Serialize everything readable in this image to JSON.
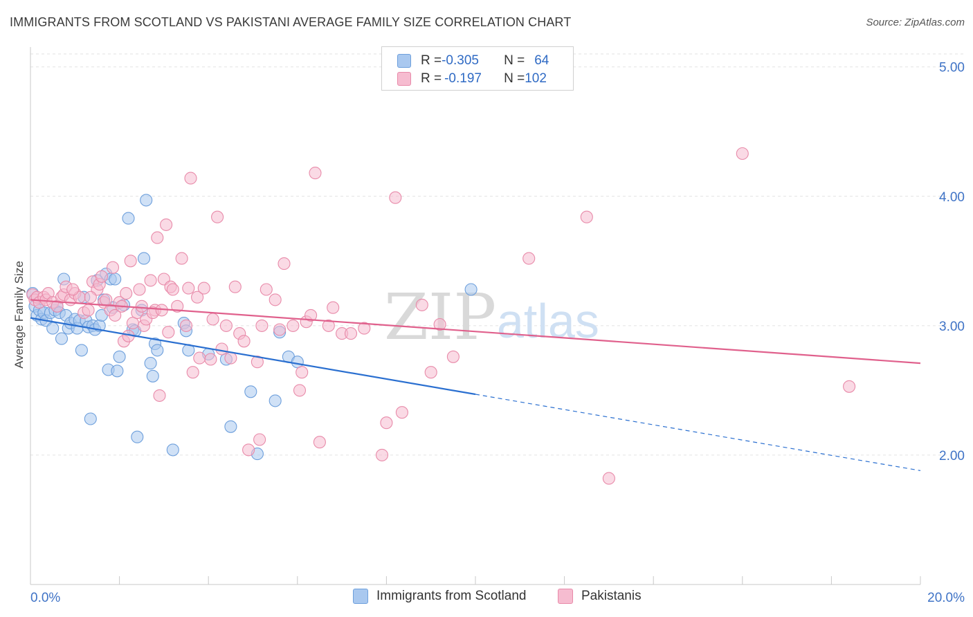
{
  "title": "IMMIGRANTS FROM SCOTLAND VS PAKISTANI AVERAGE FAMILY SIZE CORRELATION CHART",
  "source": "Source: ZipAtlas.com",
  "watermark": {
    "zip": "ZIP",
    "atlas": "atlas"
  },
  "legend": {
    "rows": [
      {
        "r_label": "R = ",
        "r_value": "-0.305",
        "n_label": "N = ",
        "n_value": "64",
        "color": "#a9c8ef",
        "stroke": "#6d9fdc"
      },
      {
        "r_label": "R = ",
        "r_value": "-0.197",
        "n_label": "N = ",
        "n_value": "102",
        "color": "#f6bcd0",
        "stroke": "#e88aa9"
      }
    ]
  },
  "bottom_legend": [
    {
      "label": "Immigrants from Scotland",
      "color": "#a9c8ef",
      "stroke": "#6d9fdc"
    },
    {
      "label": "Pakistanis",
      "color": "#f6bcd0",
      "stroke": "#e88aa9"
    }
  ],
  "chart_data": {
    "type": "scatter",
    "title": "IMMIGRANTS FROM SCOTLAND VS PAKISTANI AVERAGE FAMILY SIZE CORRELATION CHART",
    "xlabel": "",
    "ylabel": "Average Family Size",
    "xlim": [
      0,
      20
    ],
    "ylim": [
      1.0,
      5.1
    ],
    "x_tick_labels": [
      "0.0%",
      "20.0%"
    ],
    "y_ticks": [
      2.0,
      3.0,
      4.0,
      5.0
    ],
    "y_tick_labels": [
      "2.00",
      "3.00",
      "4.00",
      "5.00"
    ],
    "grid": true,
    "legend_position": "top-center",
    "series": [
      {
        "name": "Immigrants from Scotland",
        "color": "#6d9fdc",
        "fill": "#a9c8ef",
        "trend": {
          "x": [
            0.0,
            10.0,
            20.0
          ],
          "y": [
            3.06,
            2.47,
            1.88
          ],
          "solid_until": 10.0,
          "color": "#2a6fd0"
        },
        "points": [
          [
            0.1,
            3.15
          ],
          [
            0.15,
            3.08
          ],
          [
            0.2,
            3.12
          ],
          [
            0.25,
            3.05
          ],
          [
            0.3,
            3.1
          ],
          [
            0.35,
            3.04
          ],
          [
            0.45,
            3.1
          ],
          [
            0.5,
            2.98
          ],
          [
            0.55,
            3.12
          ],
          [
            0.6,
            3.15
          ],
          [
            0.65,
            3.1
          ],
          [
            0.7,
            2.9
          ],
          [
            0.75,
            3.36
          ],
          [
            0.8,
            3.08
          ],
          [
            0.85,
            2.98
          ],
          [
            0.9,
            3.02
          ],
          [
            1.0,
            3.05
          ],
          [
            1.05,
            2.98
          ],
          [
            1.1,
            3.04
          ],
          [
            1.15,
            2.81
          ],
          [
            1.2,
            3.22
          ],
          [
            1.25,
            3.04
          ],
          [
            1.3,
            2.99
          ],
          [
            1.35,
            2.28
          ],
          [
            1.4,
            3.0
          ],
          [
            1.45,
            2.97
          ],
          [
            1.5,
            3.35
          ],
          [
            1.55,
            3.0
          ],
          [
            1.6,
            3.08
          ],
          [
            1.65,
            3.2
          ],
          [
            1.7,
            3.4
          ],
          [
            1.75,
            2.66
          ],
          [
            1.8,
            3.36
          ],
          [
            1.85,
            3.14
          ],
          [
            1.9,
            3.36
          ],
          [
            1.95,
            2.65
          ],
          [
            2.0,
            2.76
          ],
          [
            2.1,
            3.16
          ],
          [
            2.2,
            3.83
          ],
          [
            2.3,
            2.97
          ],
          [
            2.35,
            2.96
          ],
          [
            2.4,
            2.14
          ],
          [
            2.5,
            3.12
          ],
          [
            2.55,
            3.52
          ],
          [
            2.6,
            3.97
          ],
          [
            2.7,
            2.71
          ],
          [
            2.75,
            2.61
          ],
          [
            2.8,
            2.86
          ],
          [
            2.85,
            2.81
          ],
          [
            3.2,
            2.04
          ],
          [
            3.45,
            3.02
          ],
          [
            3.5,
            2.96
          ],
          [
            3.55,
            2.81
          ],
          [
            4.0,
            2.78
          ],
          [
            4.4,
            2.74
          ],
          [
            4.5,
            2.22
          ],
          [
            4.95,
            2.49
          ],
          [
            5.1,
            2.01
          ],
          [
            5.5,
            2.42
          ],
          [
            5.6,
            2.95
          ],
          [
            5.8,
            2.76
          ],
          [
            6.0,
            2.72
          ],
          [
            9.9,
            3.28
          ],
          [
            0.05,
            3.25
          ]
        ]
      },
      {
        "name": "Pakistanis",
        "color": "#e88aa9",
        "fill": "#f6bcd0",
        "trend": {
          "x": [
            0.0,
            20.0
          ],
          "y": [
            3.2,
            2.71
          ],
          "solid_until": 20.0,
          "color": "#e0608c"
        },
        "points": [
          [
            0.05,
            3.24
          ],
          [
            0.1,
            3.2
          ],
          [
            0.15,
            3.22
          ],
          [
            0.2,
            3.18
          ],
          [
            0.3,
            3.22
          ],
          [
            0.35,
            3.2
          ],
          [
            0.4,
            3.25
          ],
          [
            0.5,
            3.18
          ],
          [
            0.6,
            3.15
          ],
          [
            0.7,
            3.22
          ],
          [
            0.75,
            3.24
          ],
          [
            0.8,
            3.3
          ],
          [
            0.9,
            3.2
          ],
          [
            1.0,
            3.25
          ],
          [
            1.1,
            3.22
          ],
          [
            1.2,
            3.1
          ],
          [
            1.3,
            3.12
          ],
          [
            1.4,
            3.34
          ],
          [
            1.5,
            3.28
          ],
          [
            1.55,
            3.32
          ],
          [
            1.6,
            3.38
          ],
          [
            1.65,
            3.18
          ],
          [
            1.7,
            3.2
          ],
          [
            1.8,
            3.12
          ],
          [
            1.85,
            3.45
          ],
          [
            1.9,
            3.08
          ],
          [
            2.0,
            3.18
          ],
          [
            2.05,
            3.15
          ],
          [
            2.1,
            2.88
          ],
          [
            2.15,
            3.25
          ],
          [
            2.2,
            2.92
          ],
          [
            2.25,
            3.5
          ],
          [
            2.3,
            3.02
          ],
          [
            2.4,
            3.1
          ],
          [
            2.45,
            3.28
          ],
          [
            2.5,
            3.15
          ],
          [
            2.55,
            3.0
          ],
          [
            2.6,
            3.05
          ],
          [
            2.7,
            3.35
          ],
          [
            2.8,
            3.12
          ],
          [
            2.85,
            3.68
          ],
          [
            2.9,
            2.46
          ],
          [
            3.0,
            3.36
          ],
          [
            3.05,
            3.78
          ],
          [
            3.1,
            2.95
          ],
          [
            3.15,
            3.3
          ],
          [
            3.2,
            3.28
          ],
          [
            3.3,
            3.15
          ],
          [
            3.4,
            3.52
          ],
          [
            3.5,
            3.0
          ],
          [
            3.55,
            3.29
          ],
          [
            3.6,
            4.14
          ],
          [
            3.65,
            2.64
          ],
          [
            3.75,
            3.22
          ],
          [
            3.8,
            2.75
          ],
          [
            3.9,
            3.29
          ],
          [
            4.1,
            3.05
          ],
          [
            4.2,
            3.84
          ],
          [
            4.3,
            2.82
          ],
          [
            4.4,
            3.0
          ],
          [
            4.5,
            2.75
          ],
          [
            4.6,
            3.3
          ],
          [
            4.7,
            2.94
          ],
          [
            4.8,
            2.88
          ],
          [
            4.9,
            2.04
          ],
          [
            5.1,
            2.72
          ],
          [
            5.15,
            2.12
          ],
          [
            5.2,
            3.0
          ],
          [
            5.3,
            3.28
          ],
          [
            5.5,
            3.2
          ],
          [
            5.6,
            2.97
          ],
          [
            5.7,
            3.48
          ],
          [
            5.9,
            3.0
          ],
          [
            6.05,
            2.5
          ],
          [
            6.1,
            2.64
          ],
          [
            6.2,
            3.03
          ],
          [
            6.3,
            3.08
          ],
          [
            6.4,
            4.18
          ],
          [
            6.5,
            2.1
          ],
          [
            6.7,
            3.0
          ],
          [
            6.8,
            3.14
          ],
          [
            7.0,
            2.94
          ],
          [
            7.2,
            2.94
          ],
          [
            7.5,
            2.98
          ],
          [
            7.9,
            2.0
          ],
          [
            8.0,
            2.25
          ],
          [
            8.2,
            3.99
          ],
          [
            8.35,
            2.33
          ],
          [
            8.8,
            3.16
          ],
          [
            9.0,
            2.64
          ],
          [
            9.2,
            3.01
          ],
          [
            9.5,
            2.76
          ],
          [
            11.2,
            3.52
          ],
          [
            12.5,
            3.84
          ],
          [
            13.0,
            1.82
          ],
          [
            16.0,
            4.33
          ],
          [
            18.4,
            2.53
          ],
          [
            2.75,
            3.1
          ],
          [
            1.35,
            3.22
          ],
          [
            0.95,
            3.28
          ],
          [
            2.95,
            3.12
          ],
          [
            4.05,
            2.74
          ]
        ]
      }
    ]
  }
}
